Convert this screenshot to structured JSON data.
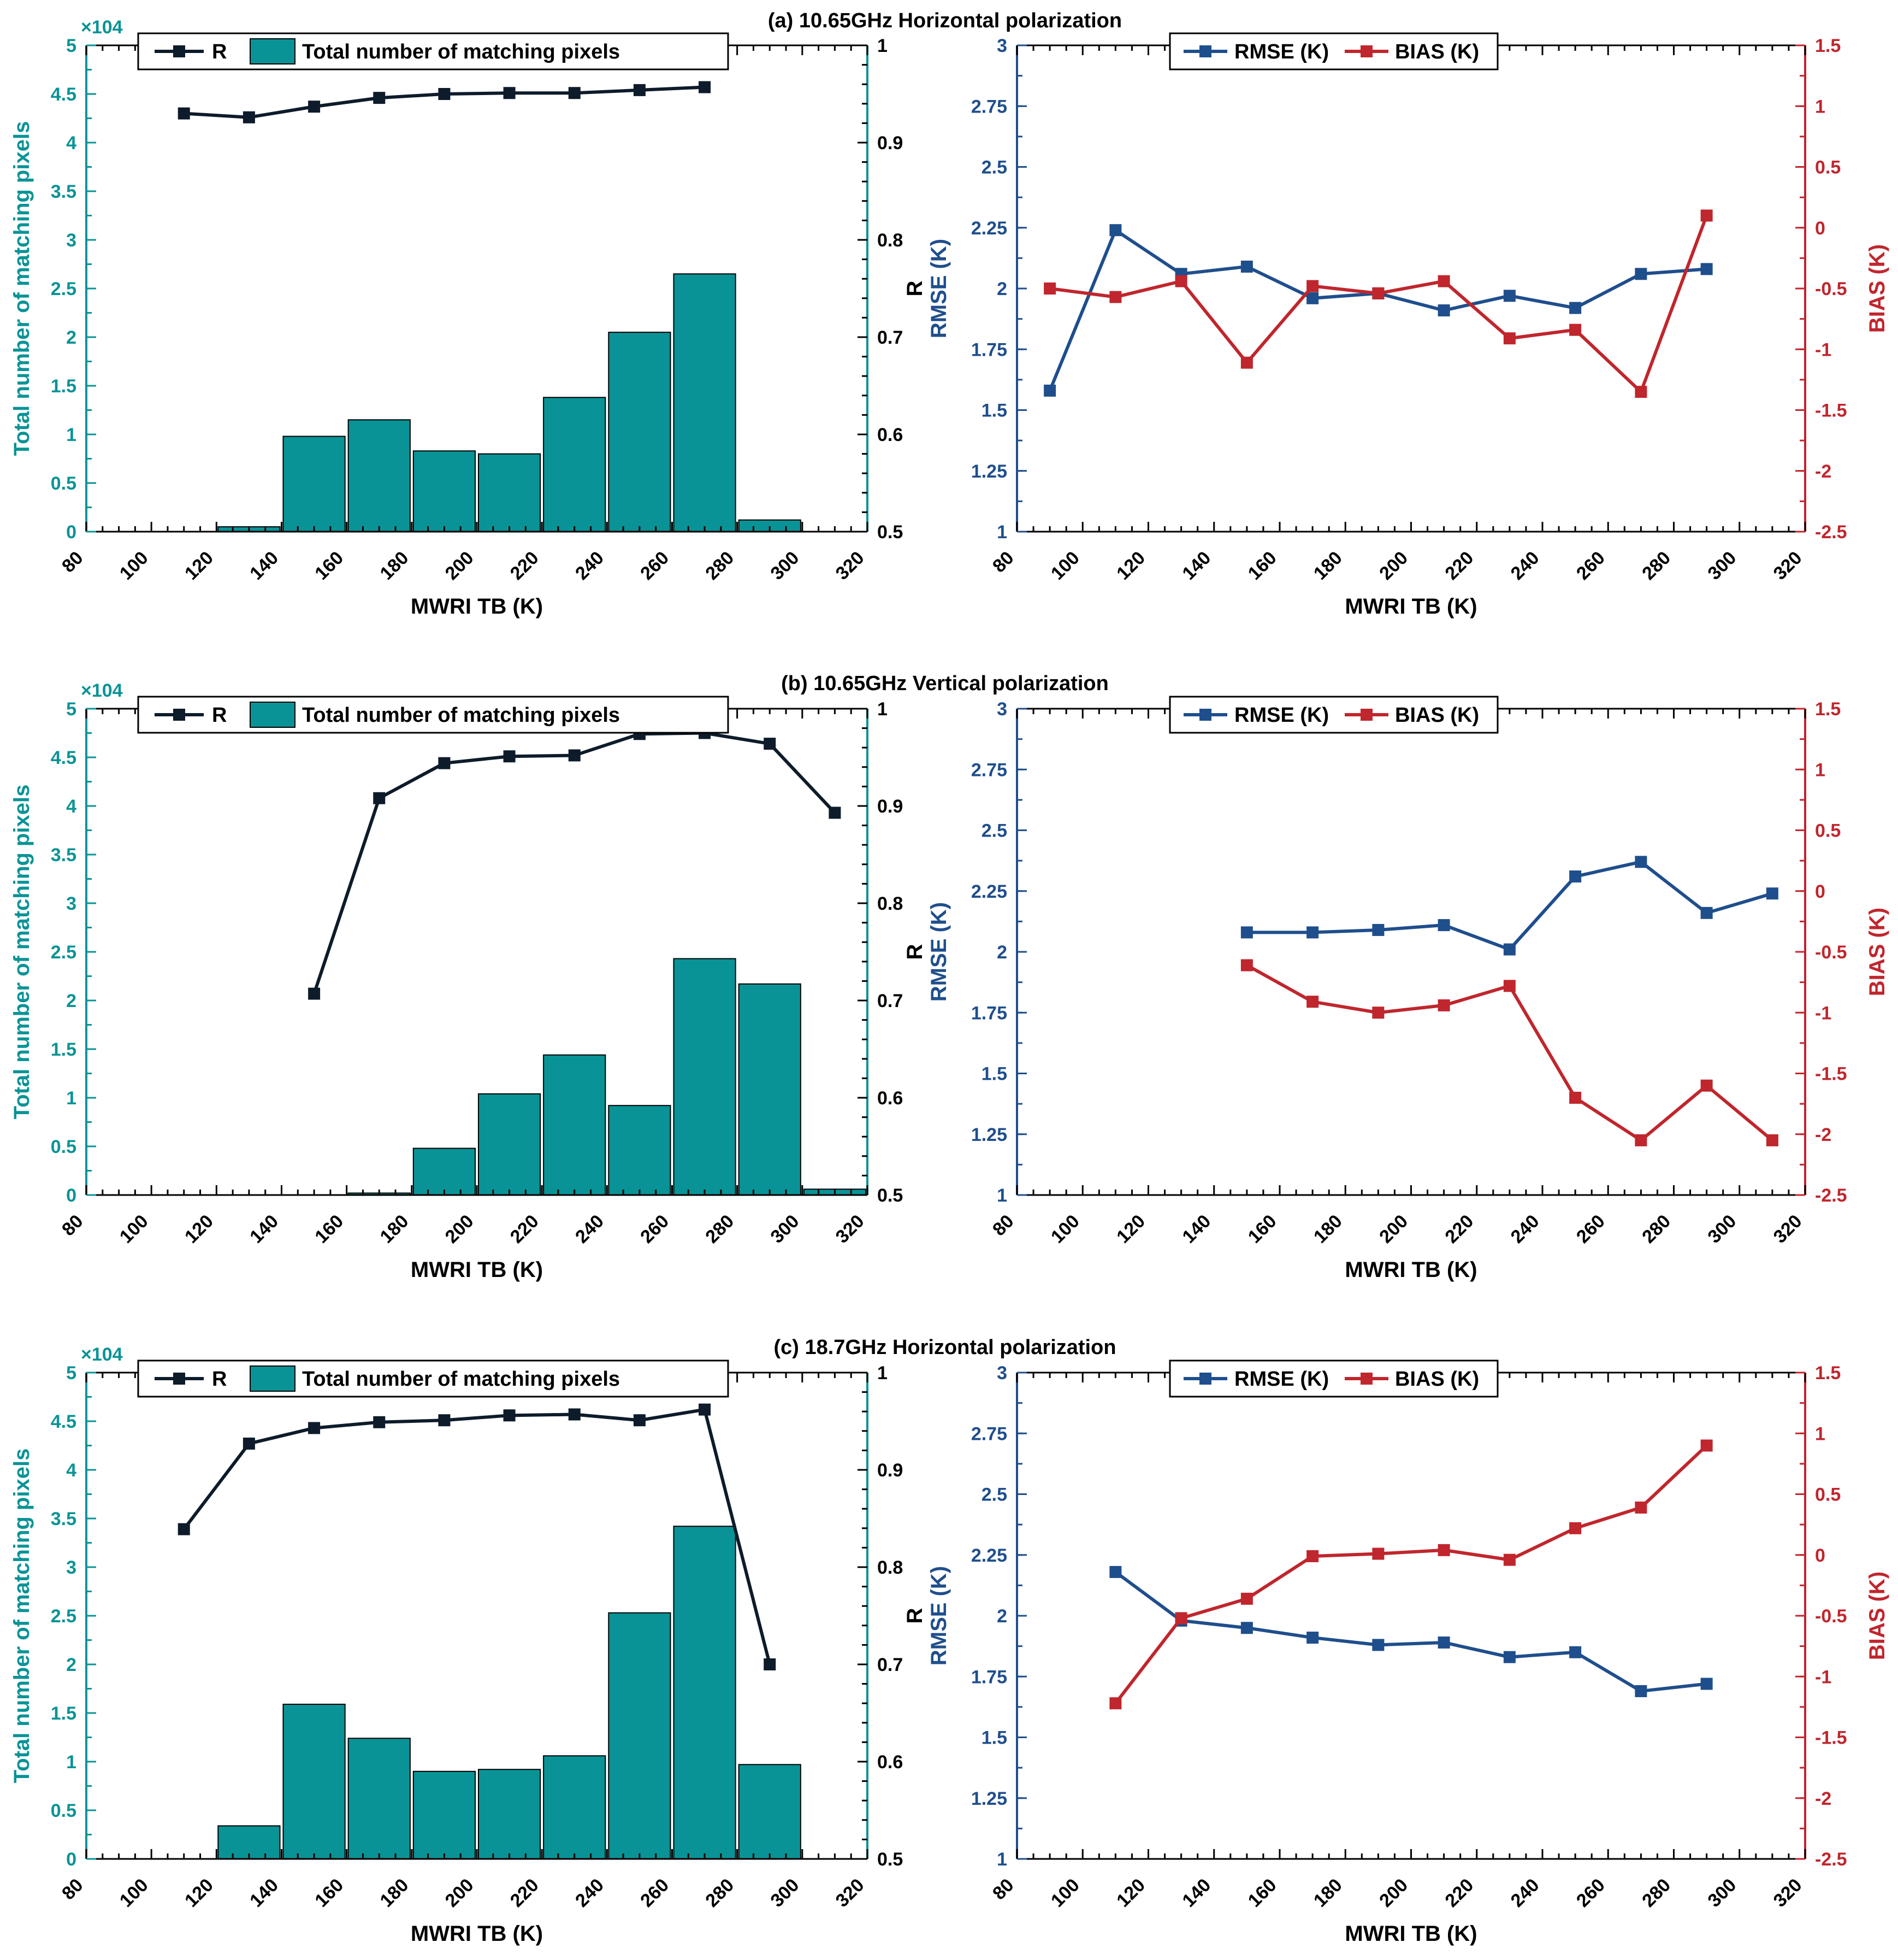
{
  "colors": {
    "teal": "#0A9396",
    "bar_fill": "#0A9396",
    "r_line": "#0D1B2A",
    "blue": "#1F4E8C",
    "red": "#C0262D",
    "axis": "#000000"
  },
  "rows": [
    {
      "title": "(a) 10.65GHz Horizontal polarization"
    },
    {
      "title": "(b) 10.65GHz Vertical polarization"
    },
    {
      "title": "(c) 18.7GHz Horizontal polarization"
    }
  ],
  "chart_data": [
    {
      "type": "bar",
      "panel": "a-left",
      "title": "(a) 10.65GHz Horizontal polarization",
      "xlabel": "MWRI TB (K)",
      "ylabel": "Total number of matching pixels",
      "y_multiplier": "×10^4",
      "y2label": "R",
      "xlim": [
        80,
        320
      ],
      "xticks": [
        "80",
        "100",
        "120",
        "140",
        "160",
        "180",
        "200",
        "220",
        "240",
        "260",
        "280",
        "300",
        "320"
      ],
      "ylim": [
        0,
        5
      ],
      "yticks": [
        "0",
        "0.5",
        "1",
        "1.5",
        "2",
        "2.5",
        "3",
        "3.5",
        "4",
        "4.5",
        "5"
      ],
      "y2lim": [
        0.5,
        1
      ],
      "y2ticks": [
        "0.5",
        "0.6",
        "0.7",
        "0.8",
        "0.9",
        "1"
      ],
      "legend": [
        "R",
        "Total number of matching pixels"
      ],
      "bars": {
        "x": [
          110,
          130,
          150,
          170,
          190,
          210,
          230,
          250,
          270,
          290
        ],
        "values": [
          0,
          0.05,
          0.98,
          1.15,
          0.83,
          0.8,
          1.38,
          2.05,
          2.65,
          0.12
        ]
      },
      "r_line": {
        "x": [
          110,
          130,
          150,
          170,
          190,
          210,
          230,
          250,
          270
        ],
        "values": [
          0.93,
          0.926,
          0.937,
          0.946,
          0.95,
          0.951,
          0.951,
          0.954,
          0.957
        ]
      }
    },
    {
      "type": "line",
      "panel": "a-right",
      "xlabel": "MWRI TB (K)",
      "ylabel": "RMSE (K)",
      "y2label": "BIAS (K)",
      "xlim": [
        80,
        320
      ],
      "xticks": [
        "80",
        "100",
        "120",
        "140",
        "160",
        "180",
        "200",
        "220",
        "240",
        "260",
        "280",
        "300",
        "320"
      ],
      "ylim": [
        1,
        3
      ],
      "yticks": [
        "1",
        "1.25",
        "1.5",
        "1.75",
        "2",
        "2.25",
        "2.5",
        "2.75",
        "3"
      ],
      "y2lim": [
        -2.5,
        1.5
      ],
      "y2ticks": [
        "-2.5",
        "-2",
        "-1.5",
        "-1",
        "-0.5",
        "0",
        "0.5",
        "1",
        "1.5"
      ],
      "legend": [
        "RMSE (K)",
        "BIAS (K)"
      ],
      "series": [
        {
          "name": "RMSE (K)",
          "axis": "left",
          "x": [
            90,
            110,
            130,
            150,
            170,
            190,
            210,
            230,
            250,
            270,
            290
          ],
          "values": [
            1.58,
            2.24,
            2.06,
            2.09,
            1.96,
            1.98,
            1.91,
            1.97,
            1.92,
            2.06,
            2.08
          ]
        },
        {
          "name": "BIAS (K)",
          "axis": "right",
          "x": [
            90,
            110,
            130,
            150,
            170,
            190,
            210,
            230,
            250,
            270,
            290
          ],
          "values": [
            -0.5,
            -0.57,
            -0.44,
            -1.11,
            -0.48,
            -0.54,
            -0.44,
            -0.91,
            -0.84,
            -1.35,
            0.1
          ]
        }
      ]
    },
    {
      "type": "bar",
      "panel": "b-left",
      "title": "(b) 10.65GHz Vertical polarization",
      "xlabel": "MWRI TB (K)",
      "ylabel": "Total number of matching pixels",
      "y_multiplier": "×10^4",
      "y2label": "R",
      "xlim": [
        80,
        320
      ],
      "xticks": [
        "80",
        "100",
        "120",
        "140",
        "160",
        "180",
        "200",
        "220",
        "240",
        "260",
        "280",
        "300",
        "320"
      ],
      "ylim": [
        0,
        5
      ],
      "yticks": [
        "0",
        "0.5",
        "1",
        "1.5",
        "2",
        "2.5",
        "3",
        "3.5",
        "4",
        "4.5",
        "5"
      ],
      "y2lim": [
        0.5,
        1
      ],
      "y2ticks": [
        "0.5",
        "0.6",
        "0.7",
        "0.8",
        "0.9",
        "1"
      ],
      "legend": [
        "R",
        "Total number of matching pixels"
      ],
      "bars": {
        "x": [
          150,
          170,
          190,
          210,
          230,
          250,
          270,
          290,
          310
        ],
        "values": [
          0,
          0.02,
          0.48,
          1.04,
          1.44,
          0.92,
          2.43,
          2.17,
          0.06
        ]
      },
      "r_line": {
        "x": [
          150,
          170,
          190,
          210,
          230,
          250,
          270,
          290,
          310
        ],
        "values": [
          0.707,
          0.908,
          0.944,
          0.951,
          0.952,
          0.974,
          0.975,
          0.964,
          0.893
        ]
      }
    },
    {
      "type": "line",
      "panel": "b-right",
      "xlabel": "MWRI TB (K)",
      "ylabel": "RMSE (K)",
      "y2label": "BIAS (K)",
      "xlim": [
        80,
        320
      ],
      "xticks": [
        "80",
        "100",
        "120",
        "140",
        "160",
        "180",
        "200",
        "220",
        "240",
        "260",
        "280",
        "300",
        "320"
      ],
      "ylim": [
        1,
        3
      ],
      "yticks": [
        "1",
        "1.25",
        "1.5",
        "1.75",
        "2",
        "2.25",
        "2.5",
        "2.75",
        "3"
      ],
      "y2lim": [
        -2.5,
        1.5
      ],
      "y2ticks": [
        "-2.5",
        "-2",
        "-1.5",
        "-1",
        "-0.5",
        "0",
        "0.5",
        "1",
        "1.5"
      ],
      "legend": [
        "RMSE (K)",
        "BIAS (K)"
      ],
      "series": [
        {
          "name": "RMSE (K)",
          "axis": "left",
          "x": [
            150,
            170,
            190,
            210,
            230,
            250,
            270,
            290,
            310
          ],
          "values": [
            2.08,
            2.08,
            2.09,
            2.11,
            2.01,
            2.31,
            2.37,
            2.16,
            2.24
          ]
        },
        {
          "name": "BIAS (K)",
          "axis": "right",
          "x": [
            150,
            170,
            190,
            210,
            230,
            250,
            270,
            290,
            310
          ],
          "values": [
            -0.61,
            -0.91,
            -1.0,
            -0.94,
            -0.78,
            -1.7,
            -2.05,
            -1.6,
            -2.05
          ]
        }
      ]
    },
    {
      "type": "bar",
      "panel": "c-left",
      "title": "(c) 18.7GHz Horizontal polarization",
      "xlabel": "MWRI TB (K)",
      "ylabel": "Total number of matching pixels",
      "y_multiplier": "×10^4",
      "y2label": "R",
      "xlim": [
        80,
        320
      ],
      "xticks": [
        "80",
        "100",
        "120",
        "140",
        "160",
        "180",
        "200",
        "220",
        "240",
        "260",
        "280",
        "300",
        "320"
      ],
      "ylim": [
        0,
        5
      ],
      "yticks": [
        "0",
        "0.5",
        "1",
        "1.5",
        "2",
        "2.5",
        "3",
        "3.5",
        "4",
        "4.5",
        "5"
      ],
      "y2lim": [
        0.5,
        1
      ],
      "y2ticks": [
        "0.5",
        "0.6",
        "0.7",
        "0.8",
        "0.9",
        "1"
      ],
      "legend": [
        "R",
        "Total number of matching pixels"
      ],
      "bars": {
        "x": [
          110,
          130,
          150,
          170,
          190,
          210,
          230,
          250,
          270,
          290
        ],
        "values": [
          0,
          0.34,
          1.59,
          1.24,
          0.9,
          0.92,
          1.06,
          2.53,
          3.42,
          0.97
        ]
      },
      "r_line": {
        "x": [
          110,
          130,
          150,
          170,
          190,
          210,
          230,
          250,
          270,
          290
        ],
        "values": [
          0.839,
          0.927,
          0.943,
          0.949,
          0.951,
          0.956,
          0.957,
          0.951,
          0.962,
          0.7
        ]
      }
    },
    {
      "type": "line",
      "panel": "c-right",
      "xlabel": "MWRI TB (K)",
      "ylabel": "RMSE (K)",
      "y2label": "BIAS (K)",
      "xlim": [
        80,
        320
      ],
      "xticks": [
        "80",
        "100",
        "120",
        "140",
        "160",
        "180",
        "200",
        "220",
        "240",
        "260",
        "280",
        "300",
        "320"
      ],
      "ylim": [
        1,
        3
      ],
      "yticks": [
        "1",
        "1.25",
        "1.5",
        "1.75",
        "2",
        "2.25",
        "2.5",
        "2.75",
        "3"
      ],
      "y2lim": [
        -2.5,
        1.5
      ],
      "y2ticks": [
        "-2.5",
        "-2",
        "-1.5",
        "-1",
        "-0.5",
        "0",
        "0.5",
        "1",
        "1.5"
      ],
      "legend": [
        "RMSE (K)",
        "BIAS (K)"
      ],
      "series": [
        {
          "name": "RMSE (K)",
          "axis": "left",
          "x": [
            110,
            130,
            150,
            170,
            190,
            210,
            230,
            250,
            270,
            290
          ],
          "values": [
            2.18,
            1.98,
            1.95,
            1.91,
            1.88,
            1.89,
            1.83,
            1.85,
            1.69,
            1.72
          ]
        },
        {
          "name": "BIAS (K)",
          "axis": "right",
          "x": [
            110,
            130,
            150,
            170,
            190,
            210,
            230,
            250,
            270,
            290
          ],
          "values": [
            -1.22,
            -0.52,
            -0.36,
            -0.01,
            0.01,
            0.04,
            -0.04,
            0.22,
            0.39,
            0.9
          ]
        }
      ]
    }
  ]
}
